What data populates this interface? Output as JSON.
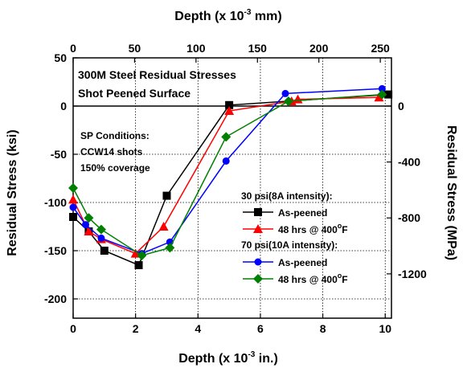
{
  "chart_data": {
    "type": "line",
    "titles": {
      "top_axis": "Depth (x 10",
      "top_axis_exp": "-3",
      "top_axis_unit": " mm)",
      "bottom_axis": "Depth (x 10",
      "bottom_axis_exp": "-3",
      "bottom_axis_unit": " in.)",
      "left_axis": "Residual Stress (ksi)",
      "right_axis": "Residual Stress (MPa)"
    },
    "annotations": {
      "heading_line1": "300M Steel Residual Stresses",
      "heading_line2": "Shot Peened Surface",
      "sp_line1": "SP Conditions:",
      "sp_line2": "CCW14 shots",
      "sp_line3": "150% coverage"
    },
    "legend": {
      "group1_title": "30 psi(8A intensity):",
      "group2_title": "70 psi(10A intensity):",
      "entry1": "As-peened",
      "entry2": "48 hrs @ 400",
      "entry2_unit": "F",
      "entry3": "As-peened",
      "entry4": "48 hrs @ 400",
      "entry4_unit": "F",
      "degree": "o"
    },
    "x_bottom": {
      "min": 0,
      "max": 10.2,
      "ticks": [
        "0",
        "2",
        "4",
        "6",
        "8",
        "10"
      ],
      "tick_values": [
        0,
        2,
        4,
        6,
        8,
        10
      ]
    },
    "x_top": {
      "min": 0,
      "max": 259.08,
      "ticks": [
        "0",
        "50",
        "100",
        "150",
        "200",
        "250"
      ],
      "tick_values": [
        0,
        50,
        100,
        150,
        200,
        250
      ]
    },
    "y_left": {
      "min": -220,
      "max": 50,
      "ticks": [
        "50",
        "0",
        "-50",
        "-100",
        "-150",
        "-200"
      ],
      "tick_values": [
        50,
        0,
        -50,
        -100,
        -150,
        -200
      ]
    },
    "y_right": {
      "ticks": [
        "0",
        "-400",
        "-800",
        "-1200"
      ],
      "tick_values": [
        0,
        -400,
        -800,
        -1200
      ]
    },
    "grid": true,
    "series": [
      {
        "color": "#000000",
        "marker": "square",
        "points": [
          [
            0,
            -115
          ],
          [
            0.5,
            -130
          ],
          [
            1.0,
            -150
          ],
          [
            2.1,
            -165
          ],
          [
            3.0,
            -93
          ],
          [
            5.0,
            1
          ],
          [
            10.1,
            12
          ]
        ]
      },
      {
        "color": "#ff0000",
        "marker": "triangle",
        "points": [
          [
            0,
            -97
          ],
          [
            0.5,
            -130
          ],
          [
            0.9,
            -138
          ],
          [
            2.0,
            -153
          ],
          [
            2.9,
            -125
          ],
          [
            5.0,
            -5
          ],
          [
            7.0,
            5
          ],
          [
            7.2,
            7
          ],
          [
            9.8,
            9
          ]
        ]
      },
      {
        "color": "#0000ff",
        "marker": "circle",
        "points": [
          [
            0,
            -105
          ],
          [
            0.4,
            -123
          ],
          [
            0.9,
            -137
          ],
          [
            2.2,
            -153
          ],
          [
            3.1,
            -141
          ],
          [
            4.9,
            -57
          ],
          [
            6.8,
            13
          ],
          [
            9.9,
            18
          ]
        ]
      },
      {
        "color": "#008000",
        "marker": "diamond",
        "points": [
          [
            0,
            -85
          ],
          [
            0.5,
            -116
          ],
          [
            0.9,
            -128
          ],
          [
            2.2,
            -155
          ],
          [
            3.1,
            -147
          ],
          [
            4.9,
            -32
          ],
          [
            6.9,
            5
          ],
          [
            9.9,
            12
          ]
        ]
      }
    ]
  }
}
